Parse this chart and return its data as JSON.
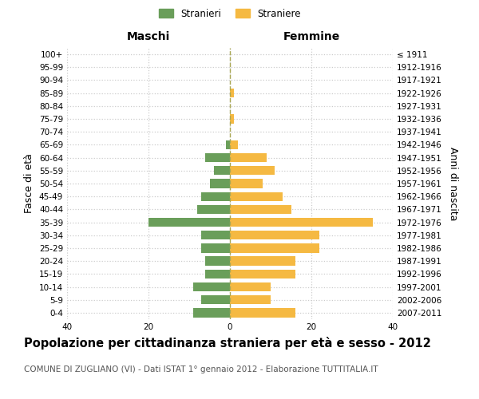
{
  "age_groups": [
    "0-4",
    "5-9",
    "10-14",
    "15-19",
    "20-24",
    "25-29",
    "30-34",
    "35-39",
    "40-44",
    "45-49",
    "50-54",
    "55-59",
    "60-64",
    "65-69",
    "70-74",
    "75-79",
    "80-84",
    "85-89",
    "90-94",
    "95-99",
    "100+"
  ],
  "birth_years": [
    "2007-2011",
    "2002-2006",
    "1997-2001",
    "1992-1996",
    "1987-1991",
    "1982-1986",
    "1977-1981",
    "1972-1976",
    "1967-1971",
    "1962-1966",
    "1957-1961",
    "1952-1956",
    "1947-1951",
    "1942-1946",
    "1937-1941",
    "1932-1936",
    "1927-1931",
    "1922-1926",
    "1917-1921",
    "1912-1916",
    "≤ 1911"
  ],
  "maschi": [
    9,
    7,
    9,
    6,
    6,
    7,
    7,
    20,
    8,
    7,
    5,
    4,
    6,
    1,
    0,
    0,
    0,
    0,
    0,
    0,
    0
  ],
  "femmine": [
    16,
    10,
    10,
    16,
    16,
    22,
    22,
    35,
    15,
    13,
    8,
    11,
    9,
    2,
    0,
    1,
    0,
    1,
    0,
    0,
    0
  ],
  "maschi_color": "#6a9e5a",
  "femmine_color": "#f5b942",
  "bar_height": 0.7,
  "xlim": 40,
  "title": "Popolazione per cittadinanza straniera per età e sesso - 2012",
  "subtitle": "COMUNE DI ZUGLIANO (VI) - Dati ISTAT 1° gennaio 2012 - Elaborazione TUTTITALIA.IT",
  "ylabel": "Fasce di età",
  "ylabel2": "Anni di nascita",
  "xlabel_left": "Maschi",
  "xlabel_right": "Femmine",
  "legend_maschi": "Stranieri",
  "legend_femmine": "Straniere",
  "bg_color": "#ffffff",
  "grid_color": "#cccccc",
  "title_fontsize": 10.5,
  "subtitle_fontsize": 7.5,
  "axis_label_fontsize": 9,
  "tick_fontsize": 7.5
}
